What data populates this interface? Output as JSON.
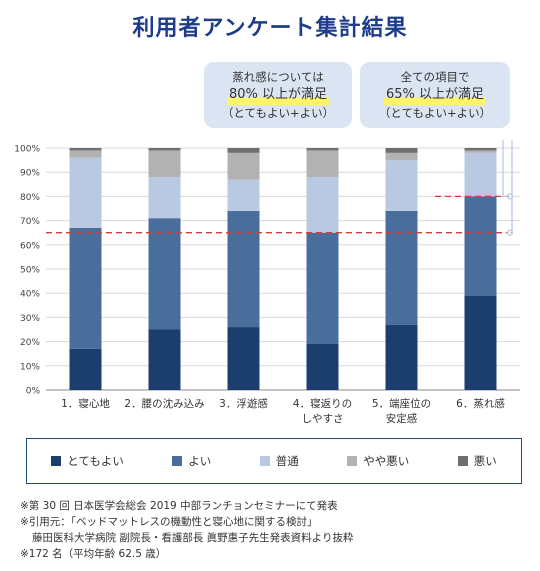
{
  "title": "利用者アンケート集計結果",
  "callouts": [
    {
      "line1": "蒸れ感については",
      "line2": "80% 以上が満足",
      "line3": "（とてもよい+よい）"
    },
    {
      "line1": "全ての項目で",
      "line2": "65% 以上が満足",
      "line3": "（とてもよい+よい）"
    }
  ],
  "chart_data": {
    "type": "bar",
    "stacked": true,
    "categories": [
      "1．寝心地",
      "2．腰の沈み込み",
      "3．浮遊感",
      "4．寝返りの\nしやすさ",
      "5．端座位の\n安定感",
      "6．蒸れ感"
    ],
    "series": [
      {
        "name": "とてもよい",
        "color": "#1c3e6e",
        "values": [
          17,
          25,
          26,
          19,
          27,
          39
        ]
      },
      {
        "name": "よい",
        "color": "#4a6e9c",
        "values": [
          50,
          46,
          48,
          46,
          47,
          41
        ]
      },
      {
        "name": "普通",
        "color": "#b9c9e1",
        "values": [
          29,
          17,
          13,
          23,
          21,
          18
        ]
      },
      {
        "name": "やや悪い",
        "color": "#b2b2b2",
        "values": [
          3,
          11,
          11,
          11,
          3,
          1
        ]
      },
      {
        "name": "悪い",
        "color": "#6f6f6f",
        "values": [
          1,
          1,
          2,
          1,
          2,
          1
        ]
      }
    ],
    "ylim": [
      0,
      100
    ],
    "yticks": [
      "0%",
      "10%",
      "20%",
      "30%",
      "40%",
      "50%",
      "60%",
      "70%",
      "80%",
      "90%",
      "100%"
    ],
    "reference_lines": [
      {
        "value": 65,
        "color": "#d83a3a",
        "span": "all"
      },
      {
        "value": 80,
        "color": "#d83a3a",
        "span": "last"
      }
    ]
  },
  "notes": [
    "※第 30 回 日本医学会総会 2019 中部ランチョンセミナーにて発表",
    "※引用元：「ベッドマットレスの機動性と寝心地に関する検討」",
    "藤田医科大学病院 副院長・看護部長 眞野惠子先生発表資料より抜粋",
    "※172 名（平均年齢 62.5 歳）"
  ]
}
